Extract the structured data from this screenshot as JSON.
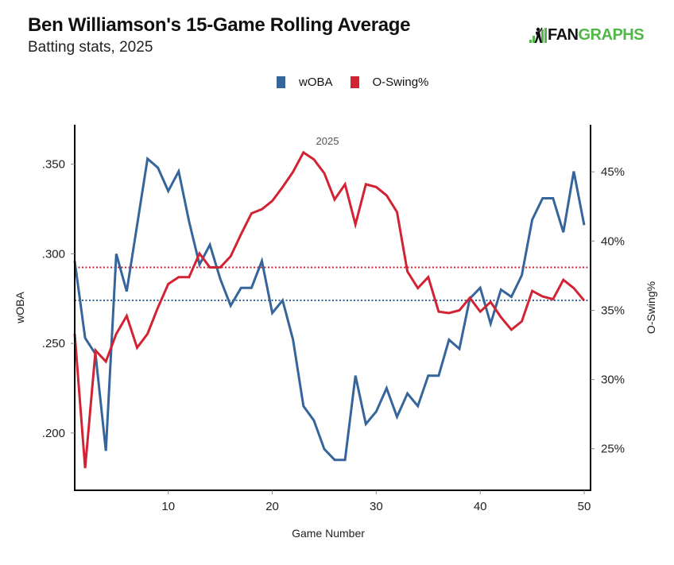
{
  "header": {
    "title": "Ben Williamson's 15-Game Rolling Average",
    "subtitle": "Batting stats, 2025",
    "logo_part1": "FAN",
    "logo_part2": "GRAPHS"
  },
  "colors": {
    "woba": "#35659a",
    "oswing": "#d22334",
    "logo_green": "#4fb848"
  },
  "chart_data": {
    "type": "line",
    "title": "Ben Williamson's 15-Game Rolling Average",
    "subtitle": "Batting stats, 2025",
    "annotation": "2025",
    "xlabel": "Game Number",
    "ylabel": "wOBA",
    "ylabel_right": "O-Swing%",
    "xlim": [
      1,
      51
    ],
    "ylim": [
      0.168,
      0.372
    ],
    "ylim_right": [
      22,
      48.4
    ],
    "x_ticks": [
      10,
      20,
      30,
      40,
      50
    ],
    "y_ticks": [
      0.2,
      0.25,
      0.3,
      0.35
    ],
    "y_tick_labels": [
      ".200",
      ".250",
      ".300",
      ".350"
    ],
    "y_right_ticks": [
      25,
      30,
      35,
      40,
      45
    ],
    "y_right_tick_labels": [
      "25%",
      "30%",
      "35%",
      "40%",
      "45%"
    ],
    "legend": [
      "wOBA",
      "O-Swing%"
    ],
    "legend_position": "top-center",
    "grid": false,
    "x": [
      1,
      2,
      3,
      4,
      5,
      6,
      7,
      8,
      9,
      10,
      11,
      12,
      13,
      14,
      15,
      16,
      17,
      18,
      19,
      20,
      21,
      22,
      23,
      24,
      25,
      26,
      27,
      28,
      29,
      30,
      31,
      32,
      33,
      34,
      35,
      36,
      37,
      38,
      39,
      40,
      41,
      42,
      43,
      44,
      45,
      46,
      47,
      48,
      49,
      50
    ],
    "series": [
      {
        "name": "wOBA",
        "axis": "left",
        "values": [
          0.296,
          0.253,
          0.244,
          0.19,
          0.3,
          0.279,
          0.316,
          0.353,
          0.348,
          0.335,
          0.346,
          0.318,
          0.294,
          0.305,
          0.286,
          0.271,
          0.281,
          0.281,
          0.296,
          0.267,
          0.274,
          0.252,
          0.215,
          0.207,
          0.191,
          0.185,
          0.185,
          0.232,
          0.205,
          0.212,
          0.225,
          0.209,
          0.222,
          0.215,
          0.232,
          0.232,
          0.252,
          0.247,
          0.275,
          0.281,
          0.261,
          0.28,
          0.276,
          0.288,
          0.319,
          0.331,
          0.331,
          0.312,
          0.346,
          0.316
        ],
        "reference_line": 0.274
      },
      {
        "name": "O-Swing%",
        "axis": "right",
        "values": [
          33.3,
          23.6,
          32.1,
          31.3,
          33.3,
          34.6,
          32.3,
          33.3,
          35.2,
          36.9,
          37.4,
          37.4,
          39.1,
          38.1,
          38.1,
          38.9,
          40.5,
          42.0,
          42.3,
          42.9,
          43.9,
          45.0,
          46.4,
          45.9,
          44.9,
          43.0,
          44.1,
          41.2,
          44.1,
          43.9,
          43.3,
          42.1,
          37.8,
          36.6,
          37.4,
          34.9,
          34.8,
          35.0,
          35.9,
          34.9,
          35.6,
          34.5,
          33.6,
          34.2,
          36.4,
          36.0,
          35.8,
          37.2,
          36.6,
          35.7
        ],
        "reference_line": 38.1
      }
    ]
  }
}
